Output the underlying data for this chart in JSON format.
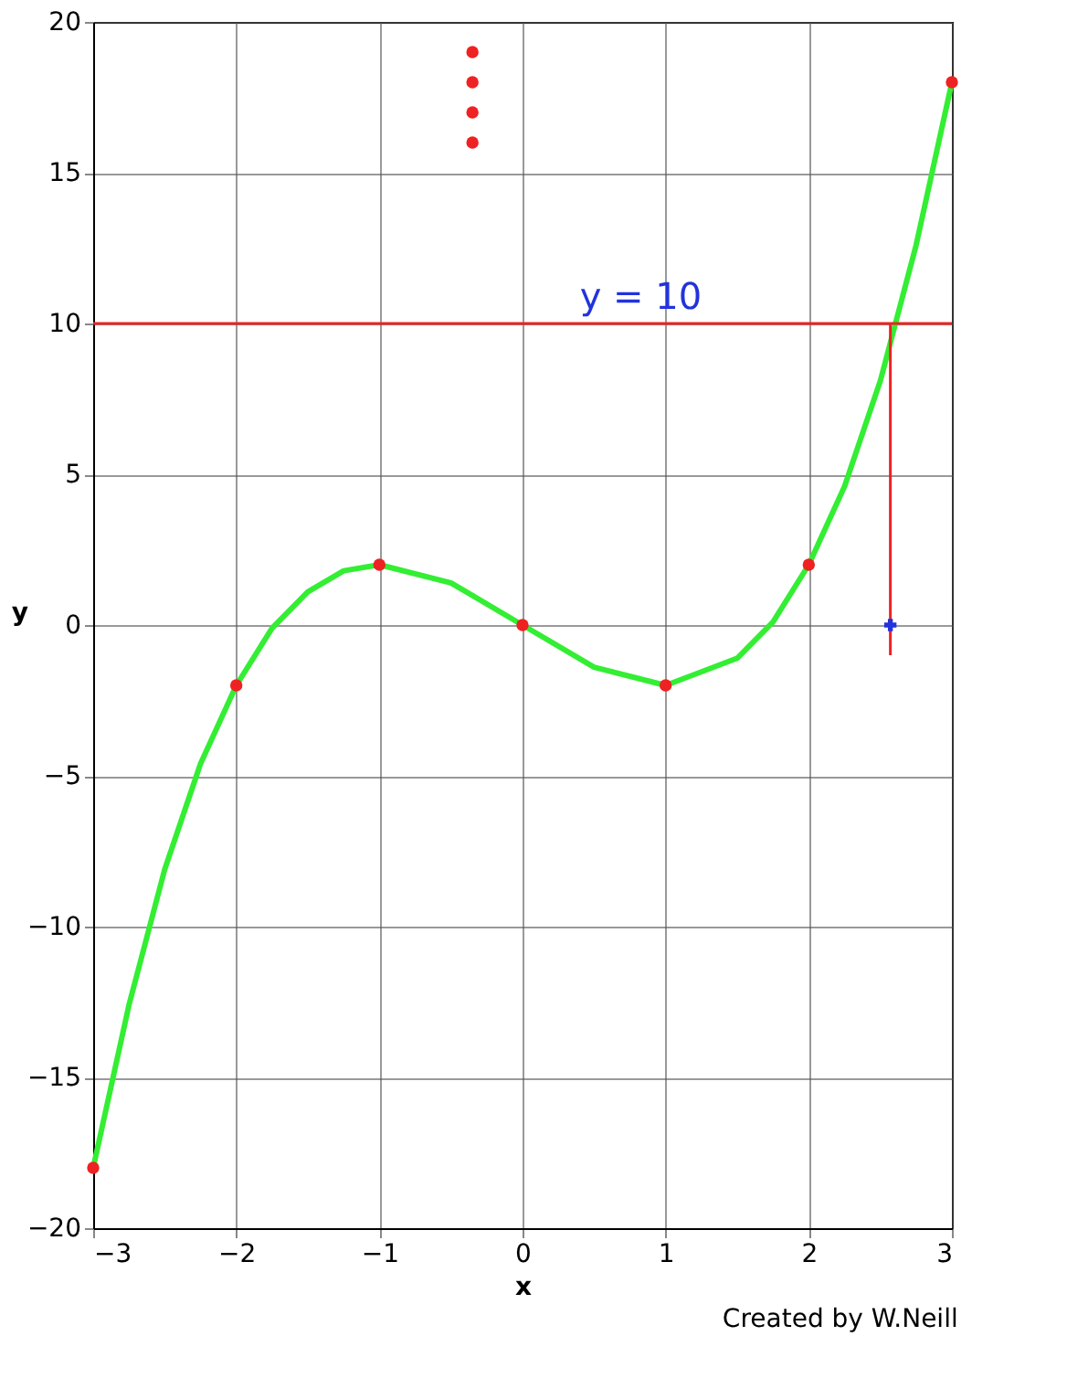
{
  "chart_data": {
    "type": "line",
    "xlabel": "x",
    "ylabel": "y",
    "xlim": [
      -3,
      3
    ],
    "ylim": [
      -20,
      20
    ],
    "xticks": [
      -3,
      -2,
      -1,
      0,
      1,
      2,
      3
    ],
    "yticks": [
      -20,
      -15,
      -10,
      -5,
      0,
      5,
      10,
      15,
      20
    ],
    "grid": true,
    "series": [
      {
        "color": "#33ee33",
        "marker": "none",
        "x": [
          -3,
          -2.75,
          -2.5,
          -2.25,
          -2,
          -1.75,
          -1.5,
          -1.25,
          -1,
          -0.5,
          0,
          0.5,
          1,
          1.5,
          1.75,
          2,
          2.25,
          2.5,
          2.75,
          3
        ],
        "values": [
          -18,
          -12.6,
          -8.1,
          -4.6,
          -2,
          -0.1,
          1.1,
          1.8,
          2,
          1.4,
          0,
          -1.4,
          -2,
          -1.1,
          0.1,
          2,
          4.6,
          8.1,
          12.6,
          18
        ]
      },
      {
        "type": "scatter",
        "color": "#ee2222",
        "marker": "circle",
        "x": [
          -3,
          -2,
          -1,
          0,
          1,
          2,
          3
        ],
        "values": [
          -18,
          -2,
          2,
          0,
          -2,
          2,
          18
        ]
      },
      {
        "type": "scatter",
        "color": "#ee2222",
        "marker": "circle",
        "x": [
          -0.35,
          -0.35,
          -0.35,
          -0.35
        ],
        "values": [
          19,
          18,
          17,
          16
        ]
      },
      {
        "color": "#ee2222",
        "marker": "none",
        "x": [
          2.57,
          2.57
        ],
        "values": [
          10,
          -1
        ]
      },
      {
        "type": "scatter",
        "color": "#2233dd",
        "marker": "cross",
        "x": [
          2.57
        ],
        "values": [
          0
        ]
      }
    ],
    "ref_lines": [
      {
        "axis": "y",
        "value": 10,
        "label": "y = 10",
        "color": "#ee2222"
      }
    ],
    "annotations": [
      "Created by W.Neill"
    ]
  }
}
